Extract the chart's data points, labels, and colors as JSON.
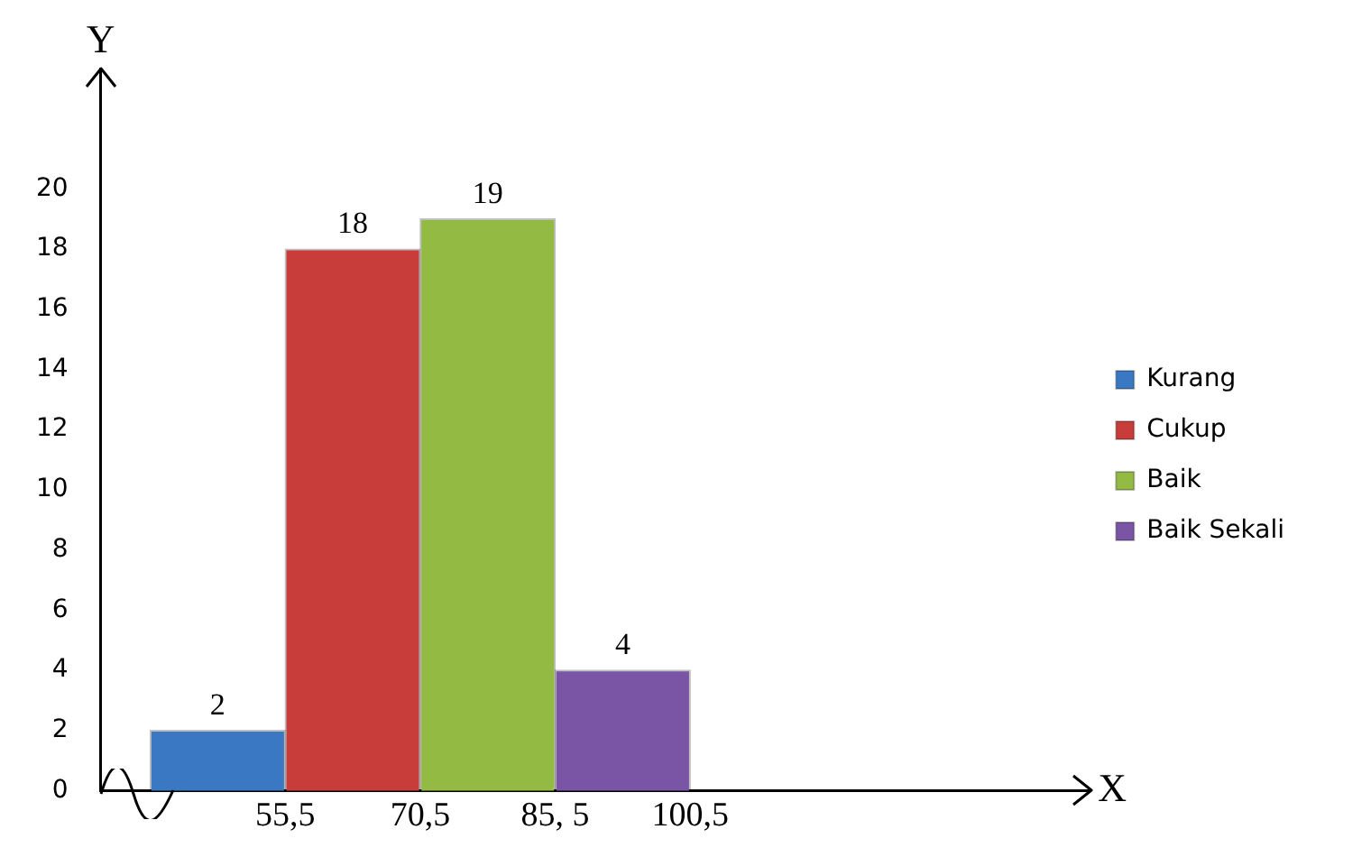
{
  "chart_data": {
    "type": "histogram",
    "xlabel": "X",
    "ylabel": "Y",
    "bins": [
      40.5,
      55.5,
      70.5,
      85.5,
      100.5
    ],
    "series": [
      {
        "name": "Kurang",
        "color": "#3a78c3",
        "values": [
          2,
          null,
          null,
          null
        ]
      },
      {
        "name": "Cukup",
        "color": "#c83c3a",
        "values": [
          null,
          18,
          null,
          null
        ]
      },
      {
        "name": "Baik",
        "color": "#93bb43",
        "values": [
          null,
          null,
          19,
          null
        ]
      },
      {
        "name": "Baik Sekali",
        "color": "#7a55a6",
        "values": [
          null,
          null,
          null,
          4
        ]
      }
    ],
    "xlim": [
      35,
      145
    ],
    "xticks": [
      {
        "value": 55.5,
        "label": "55,5"
      },
      {
        "value": 70.5,
        "label": "70,5"
      },
      {
        "value": 85.5,
        "label": "85, 5"
      },
      {
        "value": 100.5,
        "label": "100,5"
      }
    ],
    "ylim": [
      0,
      24
    ],
    "yticks": [
      0,
      2,
      4,
      6,
      8,
      10,
      12,
      14,
      16,
      18,
      20
    ],
    "data_labels": true,
    "legend": "right",
    "grid": false
  }
}
